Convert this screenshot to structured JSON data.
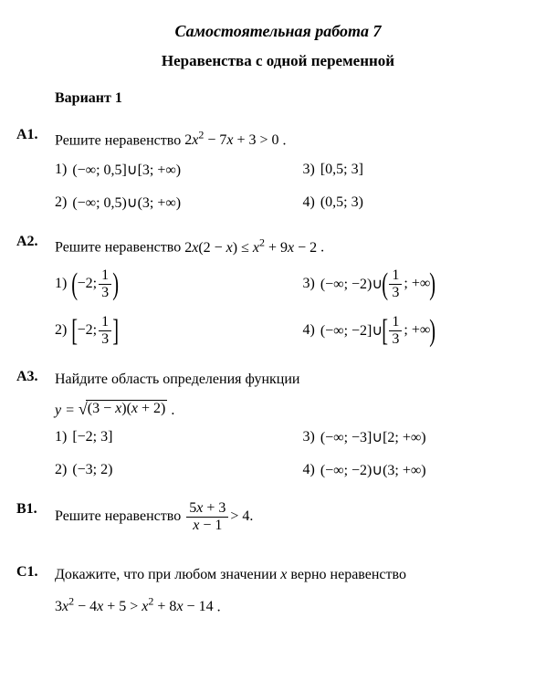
{
  "document": {
    "title": "Самостоятельная работа 7",
    "subtitle": "Неравенства с одной переменной",
    "variant": "Вариант 1",
    "colors": {
      "text": "#000000",
      "background": "#ffffff"
    },
    "fontsize_body": 16,
    "fontsize_title": 18
  },
  "tasks": {
    "a1": {
      "label": "А1.",
      "prompt_pre": "Решите неравенство ",
      "inequality_html": "2<i>x</i><sup>2</sup> − 7<i>x</i> + 3 > 0",
      "prompt_post": " .",
      "options": [
        {
          "n": "1)",
          "html": "(−∞; 0,5]∪[3; +∞)"
        },
        {
          "n": "3)",
          "html": "[0,5; 3]"
        },
        {
          "n": "2)",
          "html": "(−∞; 0,5)∪(3; +∞)"
        },
        {
          "n": "4)",
          "html": "(0,5; 3)"
        }
      ]
    },
    "a2": {
      "label": "А2.",
      "prompt_pre": "Решите неравенство ",
      "inequality_html": "2<i>x</i>(2 − <i>x</i>) ≤ <i>x</i><sup>2</sup> + 9<i>x</i> − 2",
      "prompt_post": " .",
      "options": [
        {
          "n": "1)",
          "bracket_l": "(",
          "bracket_r": ")",
          "inner_pre": "−2; ",
          "frac_n": "1",
          "frac_d": "3",
          "inner_post": ""
        },
        {
          "n": "3)",
          "pre": "(−∞; −2)∪",
          "bracket_l": "(",
          "bracket_r": ")",
          "inner_pre": "",
          "frac_n": "1",
          "frac_d": "3",
          "inner_post": "; +∞"
        },
        {
          "n": "2)",
          "bracket_l": "[",
          "bracket_r": "]",
          "inner_pre": "−2; ",
          "frac_n": "1",
          "frac_d": "3",
          "inner_post": ""
        },
        {
          "n": "4)",
          "pre": "(−∞; −2]∪",
          "bracket_l": "[",
          "bracket_r": ")",
          "inner_pre": "",
          "frac_n": "1",
          "frac_d": "3",
          "inner_post": "; +∞"
        }
      ]
    },
    "a3": {
      "label": "А3.",
      "prompt": "Найдите область определения функции",
      "func_pre": "y = ",
      "sqrt_arg_html": "(3 − <i>x</i>)(<i>x</i> + 2)",
      "func_post": " .",
      "options": [
        {
          "n": "1)",
          "html": "[−2; 3]"
        },
        {
          "n": "3)",
          "html": "(−∞; −3]∪[2; +∞)"
        },
        {
          "n": "2)",
          "html": "(−3; 2)"
        },
        {
          "n": "4)",
          "html": "(−∞; −2)∪(3; +∞)"
        }
      ]
    },
    "b1": {
      "label": "В1.",
      "prompt_pre": "Решите неравенство ",
      "frac_num_html": "5<i>x</i> + 3",
      "frac_den_html": "<i>x</i> − 1",
      "rhs": " > 4",
      "prompt_post": " ."
    },
    "c1": {
      "label": "С1.",
      "prompt": "Докажите, что при любом значении <i>x</i> верно неравенство",
      "ineq_html": "3<i>x</i><sup>2</sup> − 4<i>x</i> + 5 > <i>x</i><sup>2</sup> + 8<i>x</i> − 14",
      "post": " ."
    }
  }
}
